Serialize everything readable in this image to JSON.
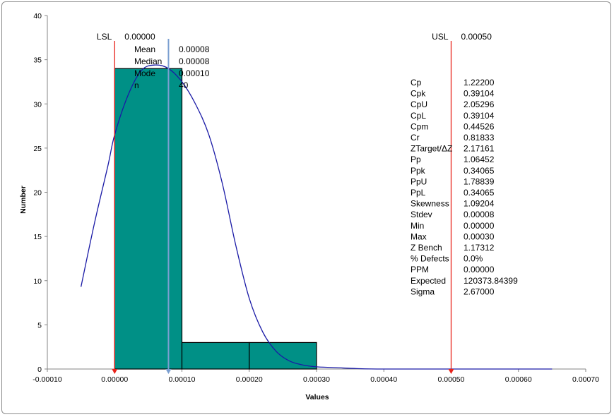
{
  "chart_data": {
    "type": "bar",
    "xlabel": "Values",
    "ylabel": "Number",
    "xlim": [
      -0.0001,
      0.0007
    ],
    "ylim": [
      0,
      40
    ],
    "x_ticks": [
      "-0.00010",
      "0.00000",
      "0.00010",
      "0.00020",
      "0.00030",
      "0.00040",
      "0.00050",
      "0.00060",
      "0.00070"
    ],
    "y_ticks": [
      "0",
      "5",
      "10",
      "15",
      "20",
      "25",
      "30",
      "35",
      "40"
    ],
    "histogram": {
      "fill": "#009086",
      "bins": [
        {
          "from": 0.0,
          "to": 0.0001,
          "count": 34
        },
        {
          "from": 0.0001,
          "to": 0.0002,
          "count": 3
        },
        {
          "from": 0.0002,
          "to": 0.0003,
          "count": 3
        }
      ]
    },
    "density_curve": {
      "color": "#1a1aa6",
      "x": [
        -5e-05,
        -3e-05,
        -1e-05,
        0.0,
        2e-05,
        4e-05,
        6e-05,
        8e-05,
        0.0001,
        0.00012,
        0.00014,
        0.00016,
        0.00018,
        0.0002,
        0.00022,
        0.00024,
        0.00026,
        0.00028,
        0.0003,
        0.00033,
        0.00036,
        0.0004,
        0.0005,
        0.00065
      ],
      "y": [
        9.3,
        16.5,
        23,
        26.5,
        31,
        33.8,
        34.4,
        34,
        32.5,
        30,
        26.5,
        21,
        14,
        8,
        4.2,
        2,
        0.9,
        0.45,
        0.25,
        0.15,
        0.05,
        0.0,
        0.0,
        0.0
      ]
    },
    "markers": [
      {
        "name": "LSL",
        "value": 0.0,
        "label": "LSL",
        "value_label": "0.00000",
        "color": "#e8231b"
      },
      {
        "name": "USL",
        "value": 0.0005,
        "label": "USL",
        "value_label": "0.00050",
        "color": "#e8231b"
      },
      {
        "name": "Mean",
        "value": 8e-05,
        "color": "#7b9fd1"
      }
    ],
    "summary": [
      {
        "label": "Mean",
        "value": "0.00008"
      },
      {
        "label": "Median",
        "value": "0.00008"
      },
      {
        "label": "Mode",
        "value": "0.00010"
      },
      {
        "label": "n",
        "value": "40"
      }
    ],
    "stats": [
      {
        "label": "Cp",
        "value": "1.22200"
      },
      {
        "label": "Cpk",
        "value": "0.39104",
        "color": "#e8231b"
      },
      {
        "label": "CpU",
        "value": "2.05296"
      },
      {
        "label": "CpL",
        "value": "0.39104"
      },
      {
        "label": "Cpm",
        "value": "0.44526"
      },
      {
        "label": "Cr",
        "value": "0.81833"
      },
      {
        "label": "ZTarget/ΔZ",
        "value": "2.17161"
      },
      {
        "label": "Pp",
        "value": "1.06452"
      },
      {
        "label": "Ppk",
        "value": "0.34065"
      },
      {
        "label": "PpU",
        "value": "1.78839"
      },
      {
        "label": "PpL",
        "value": "0.34065"
      },
      {
        "label": "Skewness",
        "value": "1.09204"
      },
      {
        "label": "Stdev",
        "value": "0.00008"
      },
      {
        "label": "Min",
        "value": "0.00000"
      },
      {
        "label": "Max",
        "value": "0.00030"
      },
      {
        "label": "Z Bench",
        "value": "1.17312"
      },
      {
        "label": "% Defects",
        "value": "0.0%"
      },
      {
        "label": "PPM",
        "value": "0.00000"
      },
      {
        "label": "Expected",
        "value": "120373.84399"
      },
      {
        "label": "Sigma",
        "value": "2.67000"
      }
    ]
  }
}
